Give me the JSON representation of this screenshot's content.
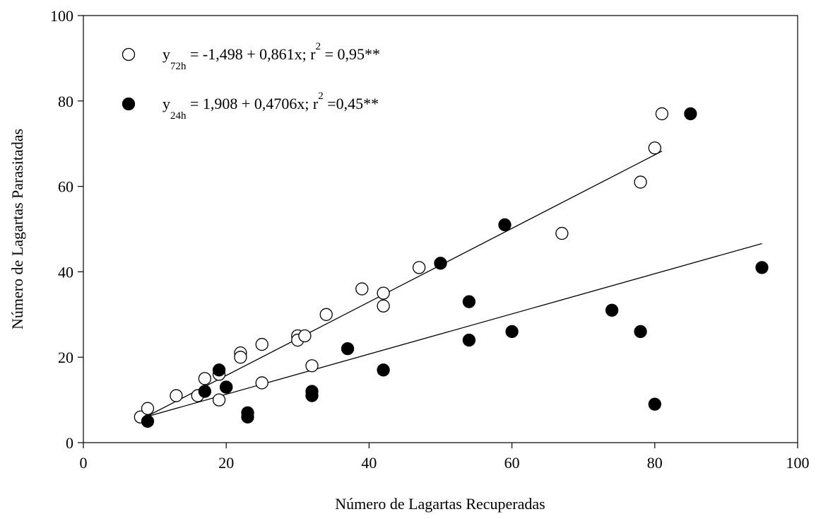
{
  "chart_data": {
    "type": "scatter",
    "title": "",
    "xlabel": "Número de Lagartas Recuperadas",
    "ylabel": "Número de Lagartas Parasitadas",
    "xlim": [
      0,
      100
    ],
    "ylim": [
      0,
      100
    ],
    "xticks": [
      0,
      20,
      40,
      60,
      80,
      100
    ],
    "yticks": [
      0,
      20,
      40,
      60,
      80,
      100
    ],
    "grid": false,
    "legend_position": "top-left",
    "series": [
      {
        "name": "72h",
        "marker": "open-circle",
        "color": "#000000",
        "legend": {
          "main": "y",
          "sub": "72h",
          "eq": " = -1,498 + 0,861x; r",
          "sup": "2",
          "tail": " = 0,95**"
        },
        "points": [
          [
            8,
            6
          ],
          [
            9,
            8
          ],
          [
            13,
            11
          ],
          [
            16,
            11
          ],
          [
            17,
            15
          ],
          [
            19,
            10
          ],
          [
            19,
            16
          ],
          [
            20,
            13
          ],
          [
            22,
            21
          ],
          [
            22,
            20
          ],
          [
            25,
            23
          ],
          [
            25,
            14
          ],
          [
            30,
            25
          ],
          [
            30,
            24
          ],
          [
            31,
            25
          ],
          [
            32,
            18
          ],
          [
            34,
            30
          ],
          [
            39,
            36
          ],
          [
            42,
            35
          ],
          [
            42,
            32
          ],
          [
            47,
            41
          ],
          [
            67,
            49
          ],
          [
            78,
            61
          ],
          [
            80,
            69
          ],
          [
            81,
            77
          ]
        ],
        "fit": {
          "intercept": -1.498,
          "slope": 0.861,
          "x_range": [
            9,
            81
          ]
        }
      },
      {
        "name": "24h",
        "marker": "filled-circle",
        "color": "#000000",
        "legend": {
          "main": "y",
          "sub": "24h",
          "eq": " = 1,908 + 0,4706x; r",
          "sup": "2",
          "tail": " =0,45**"
        },
        "points": [
          [
            9,
            5
          ],
          [
            17,
            12
          ],
          [
            19,
            17
          ],
          [
            20,
            13
          ],
          [
            23,
            7
          ],
          [
            23,
            6
          ],
          [
            32,
            12
          ],
          [
            32,
            11
          ],
          [
            37,
            22
          ],
          [
            42,
            17
          ],
          [
            50,
            42
          ],
          [
            54,
            33
          ],
          [
            54,
            24
          ],
          [
            59,
            51
          ],
          [
            60,
            26
          ],
          [
            74,
            31
          ],
          [
            78,
            26
          ],
          [
            80,
            9
          ],
          [
            85,
            77
          ],
          [
            95,
            41
          ]
        ],
        "fit": {
          "intercept": 1.908,
          "slope": 0.4706,
          "x_range": [
            9,
            95
          ]
        }
      }
    ]
  }
}
